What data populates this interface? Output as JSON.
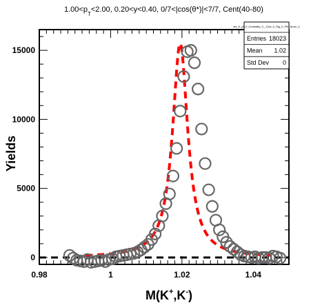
{
  "title": {
    "part1": "1.00<p",
    "sub": "T",
    "part2": "<2.00, 0.20<y<0.40, 0/7<|cos(θ*)|<7/7, Cent(40-80)"
  },
  "stats": {
    "name": "sts_K_pt_0_Centrality_0__Dca_0_Sig_0_Phi_Norm_0",
    "rows": [
      {
        "label": "Entries",
        "value": "18023"
      },
      {
        "label": "Mean",
        "value": "1.02"
      },
      {
        "label": "Std Dev",
        "value": "0"
      }
    ]
  },
  "chart_data": {
    "type": "scatter",
    "xlabel": {
      "main": "M(K",
      "sup1": "+",
      "mid": ",K",
      "sup2": "-",
      "end": ")"
    },
    "ylabel": "Yields",
    "xlim": [
      0.98,
      1.05
    ],
    "ylim": [
      -500,
      16500
    ],
    "xticks": [
      0.98,
      1,
      1.02,
      1.04
    ],
    "xtick_labels": [
      "0.98",
      "1",
      "1.02",
      "1.04"
    ],
    "yticks": [
      0,
      5000,
      10000,
      15000
    ],
    "ytick_labels": [
      "0",
      "5000",
      "10000",
      "15000"
    ],
    "marker_color": "#666666",
    "fit_color": "#ff0000",
    "baseline_color": "#000000",
    "points": {
      "x": [
        0.9885,
        0.9895,
        0.9905,
        0.9915,
        0.9925,
        0.9935,
        0.9945,
        0.9955,
        0.9965,
        0.9975,
        0.9985,
        0.9995,
        1.0005,
        1.0015,
        1.0025,
        1.0035,
        1.0045,
        1.0055,
        1.0065,
        1.0075,
        1.0085,
        1.0095,
        1.0105,
        1.0115,
        1.0125,
        1.0135,
        1.0145,
        1.0155,
        1.0165,
        1.0175,
        1.0185,
        1.0195,
        1.0205,
        1.0215,
        1.0225,
        1.0235,
        1.0245,
        1.0255,
        1.0265,
        1.0275,
        1.0285,
        1.0295,
        1.0305,
        1.0315,
        1.0325,
        1.0335,
        1.0345,
        1.0355,
        1.0365,
        1.0375,
        1.0385,
        1.0395,
        1.0405,
        1.0415,
        1.0425,
        1.0435,
        1.0445,
        1.0455,
        1.0465,
        1.0475
      ],
      "y": [
        150,
        -50,
        -200,
        -250,
        -300,
        -150,
        -350,
        -300,
        -250,
        -200,
        -300,
        -150,
        -100,
        50,
        100,
        150,
        200,
        250,
        300,
        400,
        550,
        750,
        950,
        1300,
        1700,
        2300,
        3000,
        3900,
        4600,
        5900,
        7900,
        10600,
        13100,
        14900,
        15000,
        14100,
        12200,
        9300,
        6800,
        4900,
        3700,
        2700,
        2000,
        1500,
        1100,
        800,
        600,
        400,
        200,
        100,
        50,
        0,
        50,
        -50,
        0,
        0,
        -50,
        100,
        50,
        -50
      ]
    },
    "fit": {
      "type": "breit-wigner",
      "mass": 1.0195,
      "width": 0.0052,
      "amplitude": 15500,
      "range": [
        0.993,
        1.045
      ]
    },
    "baseline": {
      "y": 0,
      "range": [
        0.98,
        1.05
      ]
    }
  }
}
